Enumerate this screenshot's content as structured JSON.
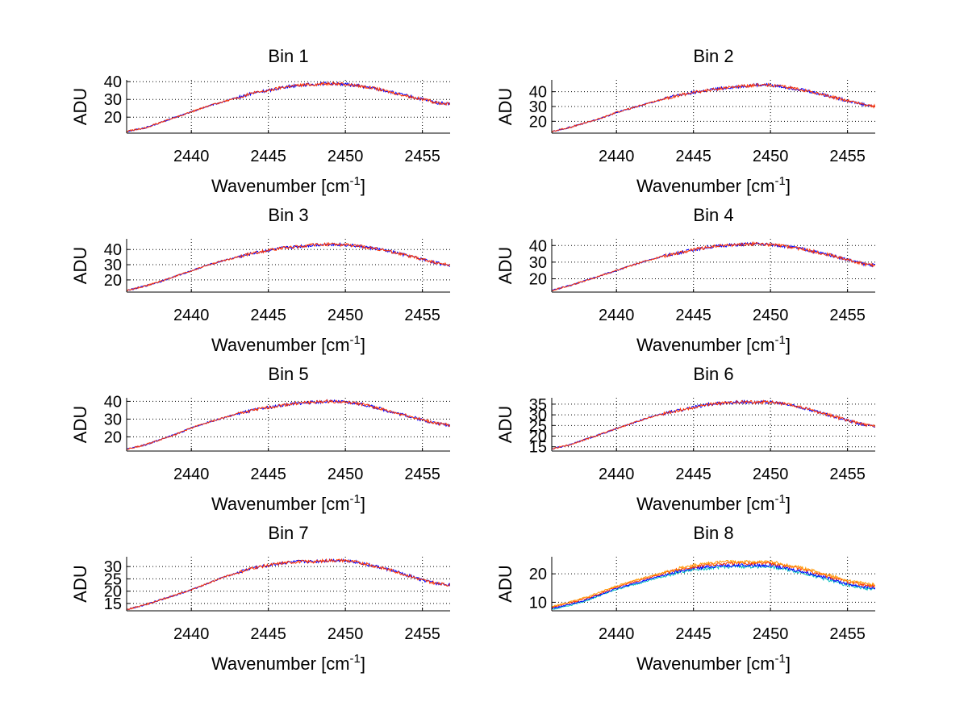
{
  "figure": {
    "background": "#ffffff",
    "grid": "dotted"
  },
  "chart_data": [
    {
      "type": "line",
      "title": "Bin 1",
      "xlabel": "Wavenumber [cm",
      "xlabel_superscript": "-1",
      "xlabel_suffix": "]",
      "ylabel": "ADU",
      "xlim": [
        2435.8,
        2456.8
      ],
      "ylim": [
        11,
        41
      ],
      "xticks": [
        2440,
        2445,
        2450,
        2455
      ],
      "yticks": [
        20,
        30,
        40
      ],
      "grid": true,
      "series": [
        {
          "color": "#0000ff",
          "x": [
            2435.8,
            2437,
            2438,
            2439,
            2440,
            2441,
            2442,
            2443,
            2444,
            2445,
            2446,
            2447,
            2448,
            2449,
            2450,
            2451,
            2452,
            2453,
            2454,
            2455,
            2456,
            2456.8
          ],
          "values": [
            12,
            14,
            17,
            20,
            23,
            26,
            28.5,
            31,
            33.5,
            35,
            37,
            38,
            38.5,
            39,
            38.5,
            37.5,
            36,
            34,
            32,
            30,
            28,
            27.5
          ]
        },
        {
          "color": "#ff3300",
          "x": [
            2435.8,
            2437,
            2438,
            2439,
            2440,
            2441,
            2442,
            2443,
            2444,
            2445,
            2446,
            2447,
            2448,
            2449,
            2450,
            2451,
            2452,
            2453,
            2454,
            2455,
            2456,
            2456.8
          ],
          "values": [
            12,
            14,
            17,
            20,
            23,
            26,
            28.5,
            31,
            33.5,
            35,
            37,
            38,
            38.5,
            39,
            38.5,
            37.5,
            36,
            34,
            32,
            30,
            28,
            27.5
          ]
        }
      ]
    },
    {
      "type": "line",
      "title": "Bin 2",
      "xlabel": "Wavenumber [cm",
      "xlabel_superscript": "-1",
      "xlabel_suffix": "]",
      "ylabel": "ADU",
      "xlim": [
        2435.8,
        2456.8
      ],
      "ylim": [
        12,
        48
      ],
      "xticks": [
        2440,
        2445,
        2450,
        2455
      ],
      "yticks": [
        20,
        30,
        40
      ],
      "grid": true,
      "series": [
        {
          "color": "#0000ff",
          "x": [
            2435.8,
            2437,
            2438,
            2439,
            2440,
            2441,
            2442,
            2443,
            2444,
            2445,
            2446,
            2447,
            2448,
            2449,
            2450,
            2451,
            2452,
            2453,
            2454,
            2455,
            2456,
            2456.8
          ],
          "values": [
            13,
            16,
            19,
            22,
            26,
            29,
            32,
            35,
            37.5,
            39.5,
            41,
            42.5,
            43.5,
            44.5,
            44.5,
            43,
            41.5,
            39,
            36.5,
            34,
            31.5,
            30
          ]
        },
        {
          "color": "#ff3300",
          "x": [
            2435.8,
            2437,
            2438,
            2439,
            2440,
            2441,
            2442,
            2443,
            2444,
            2445,
            2446,
            2447,
            2448,
            2449,
            2450,
            2451,
            2452,
            2453,
            2454,
            2455,
            2456,
            2456.8
          ],
          "values": [
            13,
            16,
            19,
            22,
            26,
            29,
            32,
            35,
            37.5,
            39.5,
            41,
            42.5,
            43.5,
            44.5,
            44.5,
            43,
            41.5,
            39,
            36.5,
            34,
            31.5,
            30
          ]
        }
      ]
    },
    {
      "type": "line",
      "title": "Bin 3",
      "xlabel": "Wavenumber [cm",
      "xlabel_superscript": "-1",
      "xlabel_suffix": "]",
      "ylabel": "ADU",
      "xlim": [
        2435.8,
        2456.8
      ],
      "ylim": [
        12,
        47
      ],
      "xticks": [
        2440,
        2445,
        2450,
        2455
      ],
      "yticks": [
        20,
        30,
        40
      ],
      "grid": true,
      "series": [
        {
          "color": "#0000ff",
          "x": [
            2435.8,
            2437,
            2438,
            2439,
            2440,
            2441,
            2442,
            2443,
            2444,
            2445,
            2446,
            2447,
            2448,
            2449,
            2450,
            2451,
            2452,
            2453,
            2454,
            2455,
            2456,
            2456.8
          ],
          "values": [
            13,
            16,
            19,
            22.5,
            26,
            29.5,
            32.5,
            35,
            37.5,
            39.5,
            41,
            42,
            43,
            43.5,
            43,
            42,
            40.5,
            38.5,
            36,
            33.5,
            31,
            29.5
          ]
        },
        {
          "color": "#ff3300",
          "x": [
            2435.8,
            2437,
            2438,
            2439,
            2440,
            2441,
            2442,
            2443,
            2444,
            2445,
            2446,
            2447,
            2448,
            2449,
            2450,
            2451,
            2452,
            2453,
            2454,
            2455,
            2456,
            2456.8
          ],
          "values": [
            13,
            16,
            19,
            22.5,
            26,
            29.5,
            32.5,
            35,
            37.5,
            39.5,
            41,
            42,
            43,
            43.5,
            43,
            42,
            40.5,
            38.5,
            36,
            33.5,
            31,
            29.5
          ]
        }
      ]
    },
    {
      "type": "line",
      "title": "Bin 4",
      "xlabel": "Wavenumber [cm",
      "xlabel_superscript": "-1",
      "xlabel_suffix": "]",
      "ylabel": "ADU",
      "xlim": [
        2435.8,
        2456.8
      ],
      "ylim": [
        12,
        44
      ],
      "xticks": [
        2440,
        2445,
        2450,
        2455
      ],
      "yticks": [
        20,
        30,
        40
      ],
      "grid": true,
      "series": [
        {
          "color": "#0000ff",
          "x": [
            2435.8,
            2437,
            2438,
            2439,
            2440,
            2441,
            2442,
            2443,
            2444,
            2445,
            2446,
            2447,
            2448,
            2449,
            2450,
            2451,
            2452,
            2453,
            2454,
            2455,
            2456,
            2456.8
          ],
          "values": [
            13,
            16,
            19,
            22,
            25,
            28,
            31,
            33.5,
            35.5,
            37.5,
            39,
            40,
            40.5,
            41,
            40.5,
            39.5,
            38,
            36,
            34,
            31.5,
            29,
            28
          ]
        },
        {
          "color": "#ff3300",
          "x": [
            2435.8,
            2437,
            2438,
            2439,
            2440,
            2441,
            2442,
            2443,
            2444,
            2445,
            2446,
            2447,
            2448,
            2449,
            2450,
            2451,
            2452,
            2453,
            2454,
            2455,
            2456,
            2456.8
          ],
          "values": [
            13,
            16,
            19,
            22,
            25,
            28,
            31,
            33.5,
            35.5,
            37.5,
            39,
            40,
            40.5,
            41,
            40.5,
            39.5,
            38,
            36,
            34,
            31.5,
            29,
            28
          ]
        }
      ]
    },
    {
      "type": "line",
      "title": "Bin 5",
      "xlabel": "Wavenumber [cm",
      "xlabel_superscript": "-1",
      "xlabel_suffix": "]",
      "ylabel": "ADU",
      "xlim": [
        2435.8,
        2456.8
      ],
      "ylim": [
        12,
        42
      ],
      "xticks": [
        2440,
        2445,
        2450,
        2455
      ],
      "yticks": [
        20,
        30,
        40
      ],
      "grid": true,
      "series": [
        {
          "color": "#0000ff",
          "x": [
            2435.8,
            2437,
            2438,
            2439,
            2440,
            2441,
            2442,
            2443,
            2444,
            2445,
            2446,
            2447,
            2448,
            2449,
            2450,
            2451,
            2452,
            2453,
            2454,
            2455,
            2456,
            2456.8
          ],
          "values": [
            13,
            15.5,
            18.5,
            21.5,
            25,
            28,
            30.5,
            33,
            35,
            36.5,
            38,
            39,
            39.5,
            40,
            39.5,
            38.5,
            36.5,
            34,
            32,
            29.5,
            27.5,
            26.5
          ]
        },
        {
          "color": "#ff3300",
          "x": [
            2435.8,
            2437,
            2438,
            2439,
            2440,
            2441,
            2442,
            2443,
            2444,
            2445,
            2446,
            2447,
            2448,
            2449,
            2450,
            2451,
            2452,
            2453,
            2454,
            2455,
            2456,
            2456.8
          ],
          "values": [
            13,
            15.5,
            18.5,
            21.5,
            25,
            28,
            30.5,
            33,
            35,
            36.5,
            38,
            39,
            39.5,
            40,
            39.5,
            38.5,
            36.5,
            34,
            32,
            29.5,
            27.5,
            26.5
          ]
        }
      ]
    },
    {
      "type": "line",
      "title": "Bin 6",
      "xlabel": "Wavenumber [cm",
      "xlabel_superscript": "-1",
      "xlabel_suffix": "]",
      "ylabel": "ADU",
      "xlim": [
        2435.8,
        2456.8
      ],
      "ylim": [
        13,
        38
      ],
      "xticks": [
        2440,
        2445,
        2450,
        2455
      ],
      "yticks": [
        15,
        20,
        25,
        30,
        35
      ],
      "grid": true,
      "series": [
        {
          "color": "#0000ff",
          "x": [
            2435.8,
            2437,
            2438,
            2439,
            2440,
            2441,
            2442,
            2443,
            2444,
            2445,
            2446,
            2447,
            2448,
            2449,
            2450,
            2451,
            2452,
            2453,
            2454,
            2455,
            2456,
            2456.8
          ],
          "values": [
            14,
            16,
            18.5,
            21,
            23.5,
            26,
            28.5,
            30.5,
            32,
            33.5,
            35,
            35.5,
            36,
            36,
            36,
            35,
            33.5,
            31.5,
            29.5,
            27.5,
            25.5,
            24.5
          ]
        },
        {
          "color": "#ff3300",
          "x": [
            2435.8,
            2437,
            2438,
            2439,
            2440,
            2441,
            2442,
            2443,
            2444,
            2445,
            2446,
            2447,
            2448,
            2449,
            2450,
            2451,
            2452,
            2453,
            2454,
            2455,
            2456,
            2456.8
          ],
          "values": [
            14,
            16,
            18.5,
            21,
            23.5,
            26,
            28.5,
            30.5,
            32,
            33.5,
            35,
            35.5,
            36,
            36,
            36,
            35,
            33.5,
            31.5,
            29.5,
            27.5,
            25.5,
            24.5
          ]
        }
      ]
    },
    {
      "type": "line",
      "title": "Bin 7",
      "xlabel": "Wavenumber [cm",
      "xlabel_superscript": "-1",
      "xlabel_suffix": "]",
      "ylabel": "ADU",
      "xlim": [
        2435.8,
        2456.8
      ],
      "ylim": [
        12,
        34
      ],
      "xticks": [
        2440,
        2445,
        2450,
        2455
      ],
      "yticks": [
        15,
        20,
        25,
        30
      ],
      "grid": true,
      "series": [
        {
          "color": "#0000ff",
          "x": [
            2435.8,
            2437,
            2438,
            2439,
            2440,
            2441,
            2442,
            2443,
            2444,
            2445,
            2446,
            2447,
            2448,
            2449,
            2450,
            2451,
            2452,
            2453,
            2454,
            2455,
            2456,
            2456.8
          ],
          "values": [
            12.5,
            14.5,
            16.5,
            18.5,
            20.5,
            23,
            25.5,
            27.5,
            29.5,
            30.5,
            31.5,
            32,
            32,
            32.5,
            32.5,
            31.5,
            30,
            28.5,
            26.5,
            24.5,
            23,
            22.5
          ]
        },
        {
          "color": "#ff3300",
          "x": [
            2435.8,
            2437,
            2438,
            2439,
            2440,
            2441,
            2442,
            2443,
            2444,
            2445,
            2446,
            2447,
            2448,
            2449,
            2450,
            2451,
            2452,
            2453,
            2454,
            2455,
            2456,
            2456.8
          ],
          "values": [
            12.5,
            14.5,
            16.5,
            18.5,
            20.5,
            23,
            25.5,
            27.5,
            29.5,
            30.5,
            31.5,
            32,
            32,
            32.5,
            32.5,
            31.5,
            30,
            28.5,
            26.5,
            24.5,
            23,
            22.5
          ]
        }
      ]
    },
    {
      "type": "line",
      "title": "Bin 8",
      "xlabel": "Wavenumber [cm",
      "xlabel_superscript": "-1",
      "xlabel_suffix": "]",
      "ylabel": "ADU",
      "xlim": [
        2435.8,
        2456.8
      ],
      "ylim": [
        7,
        26
      ],
      "xticks": [
        2440,
        2445,
        2450,
        2455
      ],
      "yticks": [
        10,
        20
      ],
      "grid": true,
      "series": [
        {
          "color": "#00bfbf",
          "x": [
            2435.8,
            2437,
            2438,
            2439,
            2440,
            2441,
            2442,
            2443,
            2444,
            2445,
            2446,
            2447,
            2448,
            2449,
            2450,
            2451,
            2452,
            2453,
            2454,
            2455,
            2456,
            2456.8
          ],
          "values": [
            7.5,
            9,
            10.5,
            12.5,
            14.5,
            16,
            17.5,
            19,
            20.5,
            21.5,
            22,
            22.5,
            22.5,
            22.5,
            22.5,
            21.5,
            20.5,
            19,
            17.5,
            16,
            15,
            14.5
          ]
        },
        {
          "color": "#0000ff",
          "x": [
            2435.8,
            2437,
            2438,
            2439,
            2440,
            2441,
            2442,
            2443,
            2444,
            2445,
            2446,
            2447,
            2448,
            2449,
            2450,
            2451,
            2452,
            2453,
            2454,
            2455,
            2456,
            2456.8
          ],
          "values": [
            7.8,
            9.3,
            10.8,
            12.8,
            14.8,
            16.4,
            17.9,
            19.4,
            20.9,
            21.9,
            22.5,
            23,
            23,
            23,
            23,
            22,
            21,
            19.5,
            18,
            16.5,
            15.5,
            15
          ]
        },
        {
          "color": "#ff3300",
          "x": [
            2435.8,
            2437,
            2438,
            2439,
            2440,
            2441,
            2442,
            2443,
            2444,
            2445,
            2446,
            2447,
            2448,
            2449,
            2450,
            2451,
            2452,
            2453,
            2454,
            2455,
            2456,
            2456.8
          ],
          "values": [
            8.2,
            9.8,
            11.3,
            13.3,
            15.3,
            17,
            18.5,
            20,
            21.5,
            22.5,
            23.2,
            23.7,
            23.7,
            23.7,
            23.7,
            22.7,
            21.7,
            20.2,
            18.7,
            17.2,
            16.2,
            15.7
          ]
        },
        {
          "color": "#ff9900",
          "x": [
            2435.8,
            2437,
            2438,
            2439,
            2440,
            2441,
            2442,
            2443,
            2444,
            2445,
            2446,
            2447,
            2448,
            2449,
            2450,
            2451,
            2452,
            2453,
            2454,
            2455,
            2456,
            2456.8
          ],
          "values": [
            8.5,
            10.1,
            11.7,
            13.7,
            15.7,
            17.4,
            18.9,
            20.4,
            21.9,
            23,
            23.7,
            24.2,
            24.2,
            24.2,
            24.2,
            23.2,
            22.2,
            20.7,
            19.2,
            17.7,
            16.7,
            16.2
          ]
        }
      ]
    }
  ]
}
